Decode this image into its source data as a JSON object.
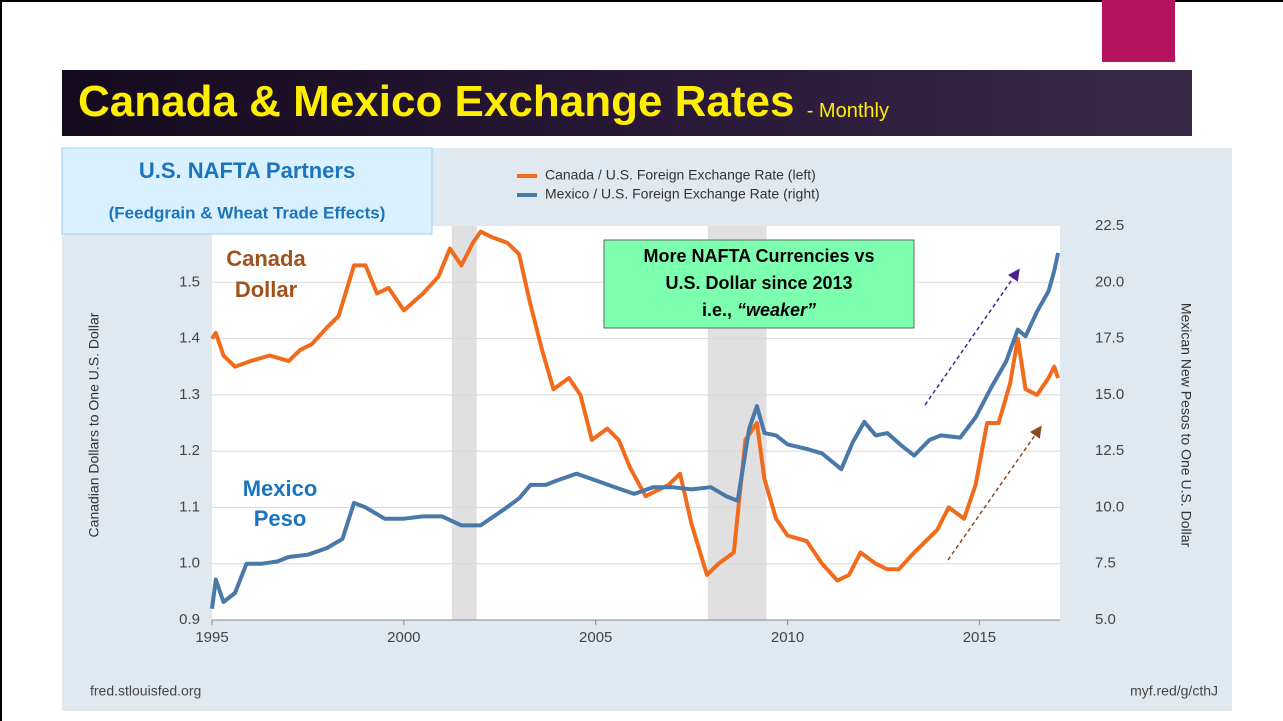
{
  "chart_data": {
    "type": "line",
    "title": "Canada & Mexico Exchange Rates",
    "title_suffix": "- Monthly",
    "badge_title": "U.S. NAFTA Partners",
    "badge_subtitle": "(Feedgrain & Wheat Trade Effects)",
    "ylabel": "Canadian Dollars to One U.S. Dollar",
    "y2label": "Mexican New Pesos to One U.S. Dollar",
    "source_left": "fred.stlouisfed.org",
    "source_right": "myf.red/g/cthJ",
    "canada_label": [
      "Canada",
      "Dollar"
    ],
    "mexico_label": [
      "Mexico",
      "Peso"
    ],
    "callout": [
      "More NAFTA Currencies vs",
      "U.S. Dollar since 2013",
      "i.e., ",
      "“weaker”"
    ],
    "xlim": [
      1995,
      2017.1
    ],
    "xticks": [
      1995,
      2000,
      2005,
      2010,
      2015
    ],
    "ylim": [
      0.9,
      1.6
    ],
    "yticks": [
      0.9,
      {
        "value": 1,
        "label": "1.0"
      },
      1.1,
      1.2,
      1.3,
      1.4,
      1.5
    ],
    "y2lim": [
      5,
      22.5
    ],
    "y2ticks": [
      {
        "value": 5,
        "label": "5.0"
      },
      {
        "value": 7.5,
        "label": "7.5"
      },
      {
        "value": 10,
        "label": "10.0"
      },
      {
        "value": 12.5,
        "label": "12.5"
      },
      {
        "value": 15,
        "label": "15.0"
      },
      {
        "value": 17.5,
        "label": "17.5"
      },
      {
        "value": 20,
        "label": "20.0"
      },
      {
        "value": 22.5,
        "label": "22.5"
      }
    ],
    "grid": true,
    "shaded_periods": [
      [
        2001.25,
        2001.9
      ],
      [
        2007.92,
        2009.45
      ]
    ],
    "series": [
      {
        "name": "Canada / U.S. Foreign Exchange Rate (left)",
        "color": "#f26b1d",
        "axis": "y",
        "x": [
          1995.0,
          1995.1,
          1995.3,
          1995.6,
          1996.0,
          1996.5,
          1997.0,
          1997.3,
          1997.6,
          1998.0,
          1998.3,
          1998.7,
          1999.0,
          1999.3,
          1999.6,
          2000.0,
          2000.5,
          2000.9,
          2001.2,
          2001.5,
          2001.8,
          2002.0,
          2002.3,
          2002.7,
          2003.0,
          2003.3,
          2003.6,
          2003.9,
          2004.3,
          2004.6,
          2004.9,
          2005.3,
          2005.6,
          2005.9,
          2006.3,
          2006.6,
          2006.9,
          2007.2,
          2007.5,
          2007.9,
          2008.2,
          2008.6,
          2008.9,
          2009.2,
          2009.4,
          2009.7,
          2010.0,
          2010.5,
          2010.9,
          2011.3,
          2011.6,
          2011.9,
          2012.3,
          2012.6,
          2012.9,
          2013.3,
          2013.6,
          2013.9,
          2014.2,
          2014.6,
          2014.9,
          2015.2,
          2015.5,
          2015.8,
          2016.0,
          2016.2,
          2016.5,
          2016.8,
          2016.95,
          2017.05
        ],
        "values": [
          1.4,
          1.41,
          1.37,
          1.35,
          1.36,
          1.37,
          1.36,
          1.38,
          1.39,
          1.42,
          1.44,
          1.53,
          1.53,
          1.48,
          1.49,
          1.45,
          1.48,
          1.51,
          1.56,
          1.53,
          1.57,
          1.59,
          1.58,
          1.57,
          1.55,
          1.46,
          1.38,
          1.31,
          1.33,
          1.3,
          1.22,
          1.24,
          1.22,
          1.17,
          1.12,
          1.13,
          1.14,
          1.16,
          1.07,
          0.98,
          1.0,
          1.02,
          1.22,
          1.25,
          1.15,
          1.08,
          1.05,
          1.04,
          1.0,
          0.97,
          0.98,
          1.02,
          1.0,
          0.99,
          0.99,
          1.02,
          1.04,
          1.06,
          1.1,
          1.08,
          1.14,
          1.25,
          1.25,
          1.32,
          1.4,
          1.31,
          1.3,
          1.33,
          1.35,
          1.33
        ]
      },
      {
        "name": "Mexico / U.S. Foreign Exchange Rate (right)",
        "color": "#4a78a8",
        "axis": "y2",
        "x": [
          1995.0,
          1995.1,
          1995.3,
          1995.6,
          1995.9,
          1996.3,
          1996.7,
          1997.0,
          1997.5,
          1998.0,
          1998.4,
          1998.7,
          1999.0,
          1999.5,
          2000.0,
          2000.5,
          2001.0,
          2001.5,
          2002.0,
          2002.6,
          2003.0,
          2003.3,
          2003.7,
          2004.0,
          2004.5,
          2005.0,
          2005.5,
          2006.0,
          2006.5,
          2007.0,
          2007.5,
          2008.0,
          2008.4,
          2008.7,
          2009.0,
          2009.2,
          2009.4,
          2009.7,
          2010.0,
          2010.5,
          2010.9,
          2011.4,
          2011.7,
          2012.0,
          2012.3,
          2012.6,
          2013.0,
          2013.3,
          2013.7,
          2014.0,
          2014.5,
          2014.9,
          2015.3,
          2015.7,
          2016.0,
          2016.2,
          2016.5,
          2016.8,
          2016.95,
          2017.05
        ],
        "values": [
          5.5,
          6.8,
          5.8,
          6.2,
          7.5,
          7.5,
          7.6,
          7.8,
          7.9,
          8.2,
          8.6,
          10.2,
          10.0,
          9.5,
          9.5,
          9.6,
          9.6,
          9.2,
          9.2,
          9.9,
          10.4,
          11.0,
          11.0,
          11.2,
          11.5,
          11.2,
          10.9,
          10.6,
          10.9,
          10.9,
          10.8,
          10.9,
          10.5,
          10.3,
          13.5,
          14.5,
          13.3,
          13.2,
          12.8,
          12.6,
          12.4,
          11.7,
          12.9,
          13.8,
          13.2,
          13.3,
          12.7,
          12.3,
          13.0,
          13.2,
          13.1,
          14.0,
          15.3,
          16.5,
          17.9,
          17.6,
          18.7,
          19.6,
          20.5,
          21.3
        ]
      }
    ]
  }
}
